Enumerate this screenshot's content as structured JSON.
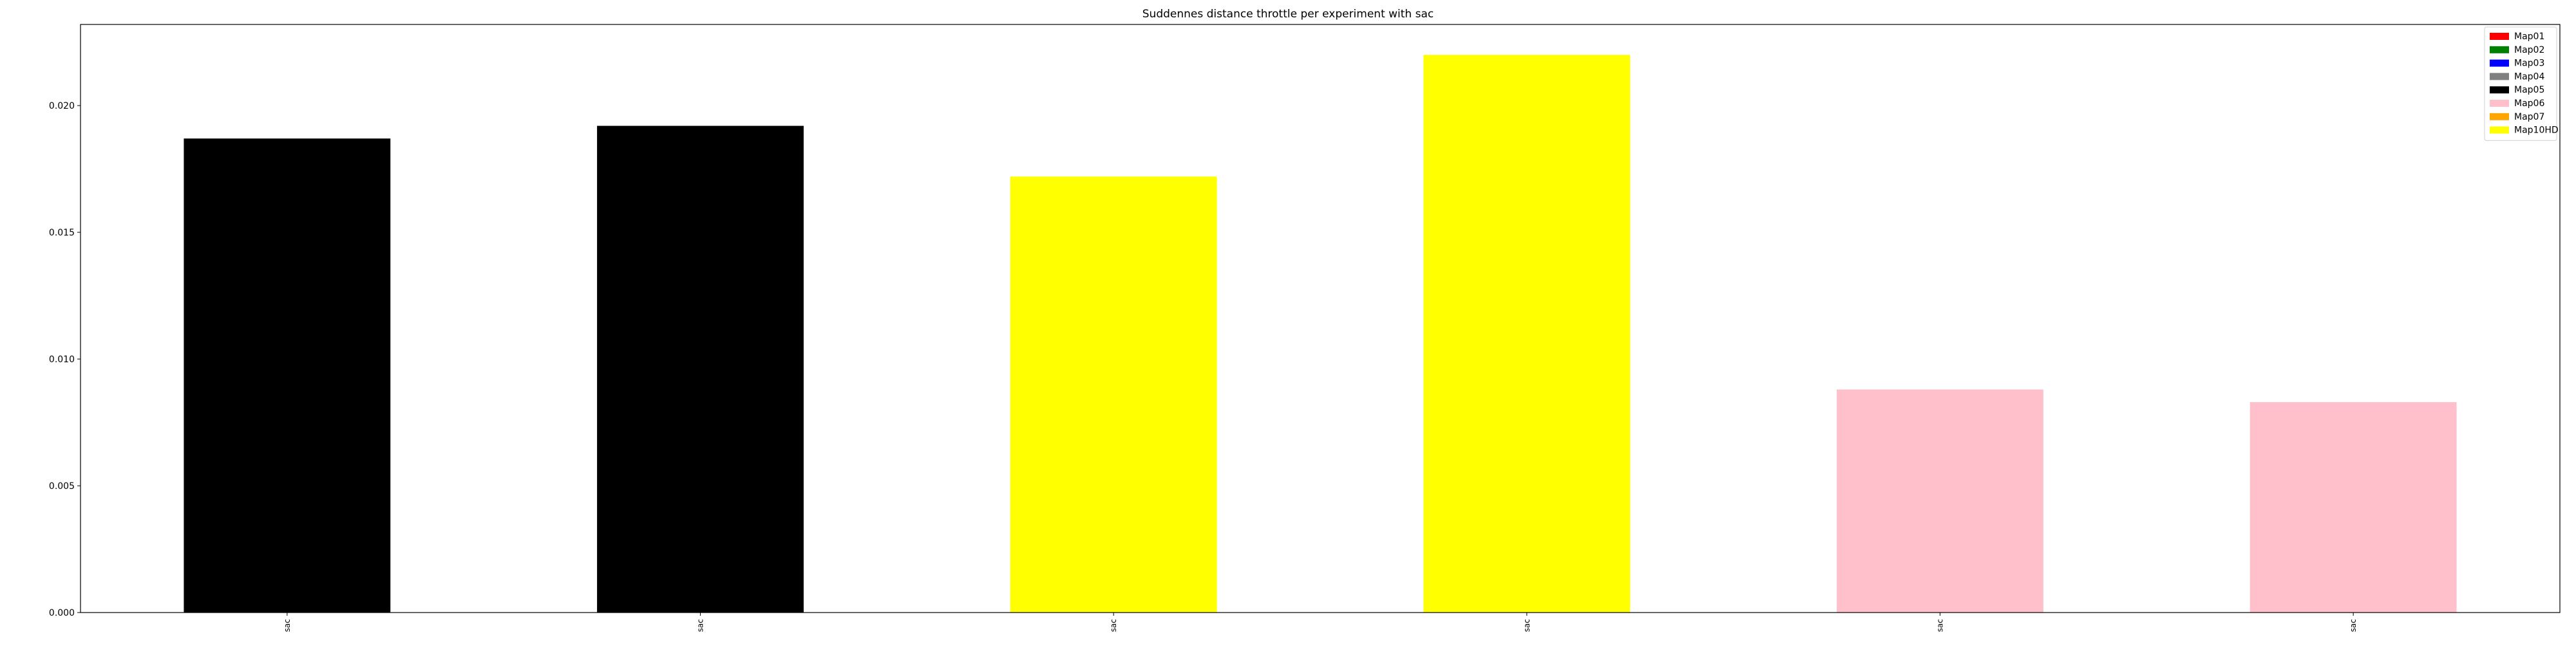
{
  "chart_data": {
    "type": "bar",
    "title": "Suddennes distance throttle per experiment with sac",
    "xlabel": "",
    "ylabel": "",
    "categories": [
      "sac",
      "sac",
      "sac",
      "sac",
      "sac",
      "sac"
    ],
    "values": [
      0.0187,
      0.0192,
      0.0172,
      0.022,
      0.0088,
      0.0083
    ],
    "bar_colors": [
      "#000000",
      "#000000",
      "#ffff00",
      "#ffff00",
      "#ffc0cb",
      "#ffc0cb"
    ],
    "ylim": [
      0,
      0.0232
    ],
    "yticks": [
      "0.000",
      "0.005",
      "0.010",
      "0.015",
      "0.020"
    ],
    "ytick_values": [
      0,
      0.005,
      0.01,
      0.015,
      0.02
    ],
    "grid": false,
    "legend_position": "top-right",
    "legend": [
      {
        "label": "Map01",
        "color": "#ff0000"
      },
      {
        "label": "Map02",
        "color": "#008000"
      },
      {
        "label": "Map03",
        "color": "#0000ff"
      },
      {
        "label": "Map04",
        "color": "#808080"
      },
      {
        "label": "Map05",
        "color": "#000000"
      },
      {
        "label": "Map06",
        "color": "#ffc0cb"
      },
      {
        "label": "Map07",
        "color": "#ffa500"
      },
      {
        "label": "Map10HD",
        "color": "#ffff00"
      }
    ]
  }
}
